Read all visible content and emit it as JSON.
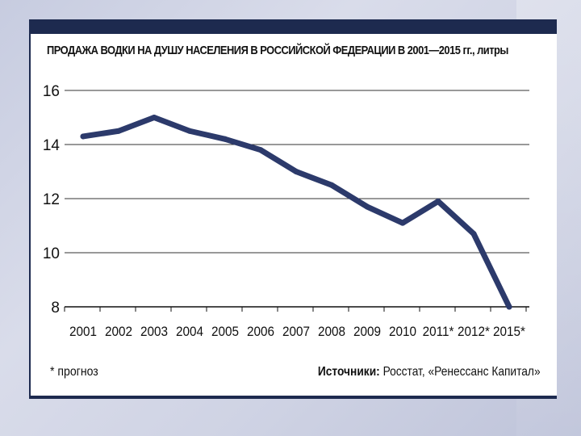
{
  "slide": {
    "accent_color": "#1d2a4f",
    "line_color": "#2c3a6b"
  },
  "chart_data": {
    "type": "line",
    "title": "ПРОДАЖА ВОДКИ НА ДУШУ НАСЕЛЕНИЯ В РОССИЙСКОЙ ФЕДЕРАЦИИ В 2001—2015 гг., литры",
    "x": [
      "2001",
      "2002",
      "2003",
      "2004",
      "2005",
      "2006",
      "2007",
      "2008",
      "2009",
      "2010",
      "2011*",
      "2012*",
      "2015*"
    ],
    "values": [
      14.3,
      14.5,
      15.0,
      14.5,
      14.2,
      13.8,
      13.0,
      12.5,
      11.7,
      11.1,
      11.9,
      10.7,
      8.0
    ],
    "ylim": [
      8,
      16
    ],
    "yticks": [
      "8",
      "10",
      "12",
      "14",
      "16"
    ],
    "grid": true
  },
  "footnote": "* прогноз",
  "sources": {
    "label": "Источники:",
    "text": "Росстат, «Ренессанс Капитал»"
  }
}
